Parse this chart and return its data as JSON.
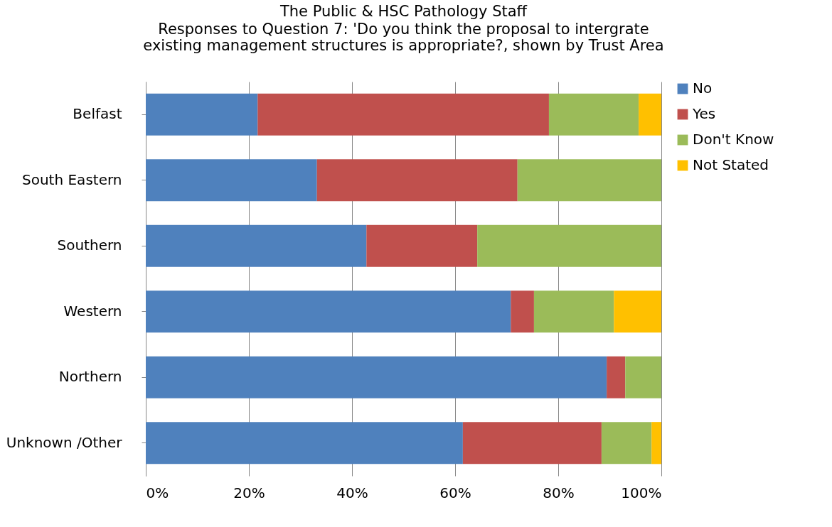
{
  "chart_data": {
    "type": "bar",
    "orientation": "horizontal",
    "stacked": true,
    "title": "The Public & HSC Pathology Staff",
    "subtitle": "Responses to Question 7: 'Do you think the proposal to intergrate existing management structures is appropriate?, shown by Trust Area",
    "categories": [
      "Belfast",
      "South Eastern",
      "Southern",
      "Western",
      "Northern",
      "Unknown /Other"
    ],
    "series": [
      {
        "name": "No",
        "color": "#4f81bd",
        "values": [
          21.7,
          33.2,
          42.8,
          70.8,
          89.4,
          61.5
        ]
      },
      {
        "name": "Yes",
        "color": "#c0504d",
        "values": [
          56.5,
          38.9,
          21.5,
          4.5,
          3.6,
          26.9
        ]
      },
      {
        "name": "Don't Know",
        "color": "#9bbb59",
        "values": [
          17.4,
          27.9,
          35.7,
          15.5,
          7.0,
          9.7
        ]
      },
      {
        "name": "Not Stated",
        "color": "#ffc000",
        "values": [
          4.4,
          0,
          0,
          9.2,
          0,
          1.9
        ]
      }
    ],
    "xlim": [
      0,
      100
    ],
    "xticks": [
      {
        "value": 0,
        "label": "0%"
      },
      {
        "value": 20,
        "label": "20%"
      },
      {
        "value": 40,
        "label": "40%"
      },
      {
        "value": 60,
        "label": "60%"
      },
      {
        "value": 80,
        "label": "80%"
      },
      {
        "value": 100,
        "label": "100%"
      }
    ],
    "grid": "x",
    "legend": "right"
  }
}
